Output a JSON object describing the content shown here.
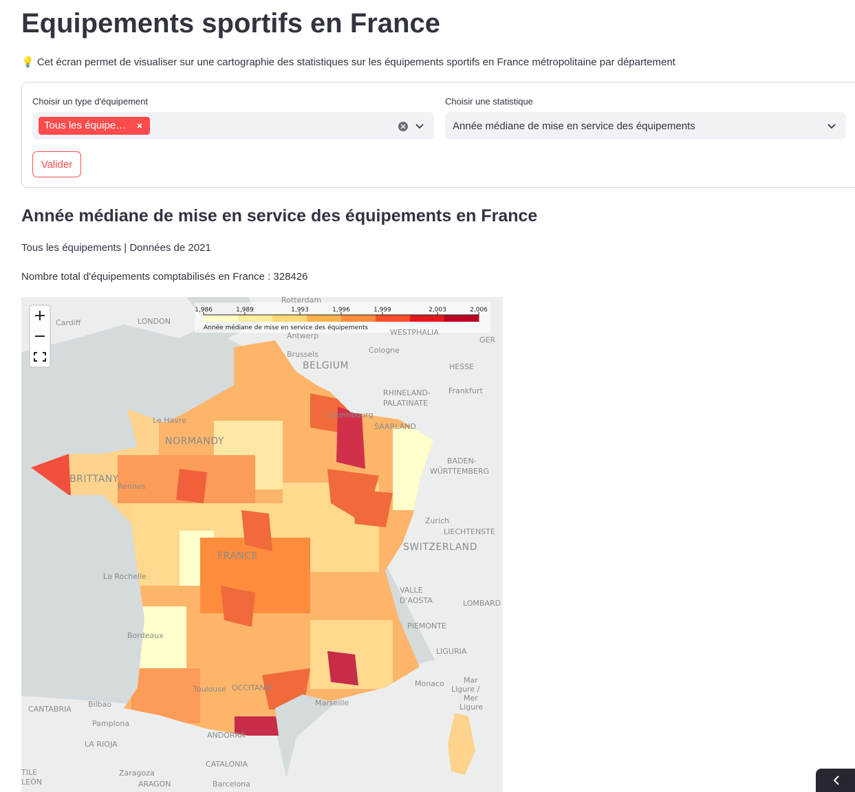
{
  "header": {
    "title": "Equipements sportifs en France",
    "info": "💡 Cet écran permet de visualiser sur une cartographie des statistiques sur les équipements sportifs en France métropolitaine par département"
  },
  "form": {
    "equipment_label": "Choisir un type d'équipement",
    "equipment_tag": "Tous les équipe…",
    "statistic_label": "Choisir une statistique",
    "statistic_value": "Année médiane de mise en service des équipements",
    "submit": "Valider"
  },
  "results": {
    "heading": "Année médiane de mise en service des équipements en France",
    "subtitle": "Tous les équipements | Données de 2021",
    "total": "Nombre total d'équipements comptabilisés en France : 328426"
  },
  "map": {
    "legend": {
      "title": "Année médiane de mise en service des équipements",
      "ticks": [
        {
          "value": 1986,
          "label": "1,986"
        },
        {
          "value": 1989,
          "label": "1,989"
        },
        {
          "value": 1993,
          "label": "1,993"
        },
        {
          "value": 1996,
          "label": "1,996"
        },
        {
          "value": 1999,
          "label": "1,999"
        },
        {
          "value": 2003,
          "label": "2,003"
        },
        {
          "value": 2006,
          "label": "2,006"
        }
      ],
      "colors": [
        "#ffffcc",
        "#ffeda0",
        "#fed976",
        "#feb24c",
        "#fd8d3c",
        "#fc4e2a",
        "#e31a1c",
        "#bd0026"
      ]
    },
    "labels": [
      "Rotterdam",
      "Cardiff",
      "LONDON",
      "WESTPHALIA",
      "GER",
      "Antwerp",
      "Cologne",
      "Brussels",
      "BELGIUM",
      "HESSE",
      "RHINELAND-",
      "PALATINATE",
      "Frankfurt",
      "Luxembourg",
      "SAARLAND",
      "Le Havre",
      "NORMANDY",
      "BRITTANY",
      "Rennes",
      "BADEN-",
      "WÜRTTEMBERG",
      "Zurich",
      "LIECHTENSTE",
      "SWITZERLAND",
      "FRANCE",
      "La Rochelle",
      "VALLE",
      "D'AOSTA",
      "LOMBARD",
      "PIEMONTE",
      "Bordeaux",
      "LIGURIA",
      "Monaco",
      "Mar",
      "Ligure /",
      "Mer",
      "Ligure",
      "Marseille",
      "Toulouse",
      "OCCITANIE",
      "CANTABRIA",
      "Bilbao",
      "Pamplona",
      "ANDORRA",
      "LA RIOJA",
      "CATALONIA",
      "Zaragoza",
      "ARAGON",
      "Barcelona",
      "TILE",
      "LEÓN"
    ]
  }
}
